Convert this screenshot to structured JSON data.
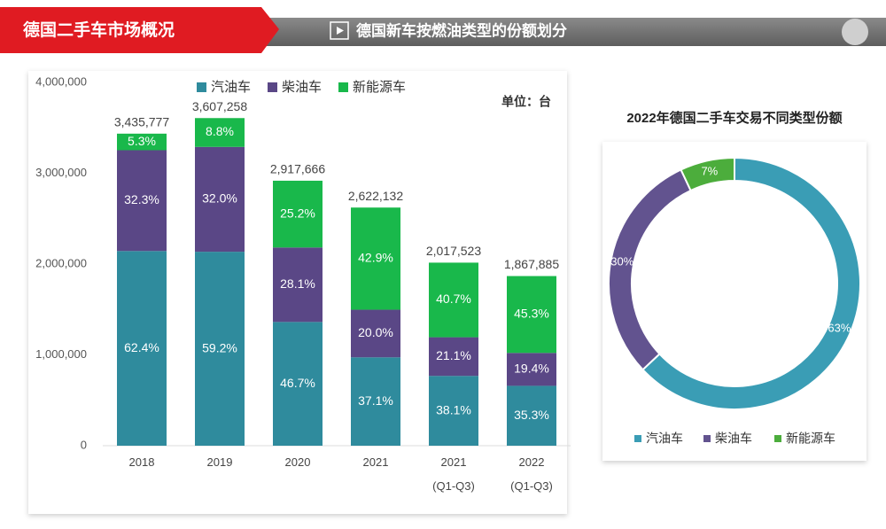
{
  "header": {
    "section": "德国二手车市场概况",
    "title": "德国新车按燃油类型的份额划分"
  },
  "chart_data": [
    {
      "type": "bar",
      "stacked": true,
      "categories": [
        "2018",
        "2019",
        "2020",
        "2021",
        "2021\n(Q1-Q3)",
        "2022\n(Q1-Q3)"
      ],
      "series": [
        {
          "name": "汽油车",
          "color": "#2f8b9d",
          "values": [
            62.4,
            59.2,
            46.7,
            37.1,
            38.1,
            35.3
          ],
          "value_labels": [
            "62.4%",
            "59.2%",
            "46.7%",
            "37.1%",
            "38.1%",
            "35.3%"
          ]
        },
        {
          "name": "柴油车",
          "color": "#5a4786",
          "values": [
            32.3,
            32,
            28.1,
            20,
            21.1,
            19.4
          ],
          "value_labels": [
            "32.3%",
            "32.0%",
            "28.1%",
            "20.0%",
            "21.1%",
            "19.4%"
          ]
        },
        {
          "name": "新能源车",
          "color": "#19b84b",
          "values": [
            5.3,
            8.8,
            25.2,
            42.9,
            40.7,
            45.3
          ],
          "value_labels": [
            "5.3%",
            "8.8%",
            "25.2%",
            "42.9%",
            "40.7%",
            "45.3%"
          ]
        }
      ],
      "totals": {
        "values": [
          3435777,
          3607258,
          2917666,
          2622132,
          2017523,
          1867885
        ],
        "value_labels": [
          "3,435,777",
          "3,607,258",
          "2,917,666",
          "2,622,132",
          "2,017,523",
          "1,867,885"
        ]
      },
      "ylim": [
        0,
        4000000
      ],
      "yticks": [
        0,
        {
          "value": 1000000,
          "label": "1,000,000"
        },
        {
          "value": 2000000,
          "label": "2,000,000"
        },
        {
          "value": 3000000,
          "label": "3,000,000"
        },
        {
          "value": 4000000,
          "label": "4,000,000"
        }
      ],
      "unit": "单位：台"
    },
    {
      "type": "pie",
      "donut": true,
      "title": "2022年德国二手车交易不同类型份额",
      "categories": [
        "汽油车",
        "柴油车",
        "新能源车"
      ],
      "values": [
        63,
        30,
        7
      ],
      "value_labels": [
        "63%",
        "30%",
        "7%"
      ],
      "colors": [
        "#3a9db5",
        "#62538f",
        "#4cad3c"
      ]
    }
  ]
}
